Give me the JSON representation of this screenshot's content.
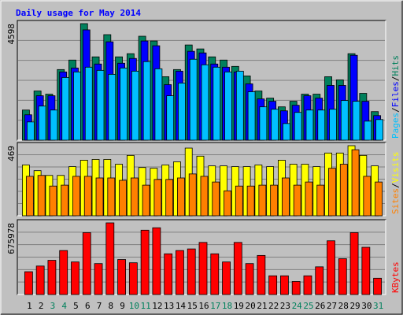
{
  "chart_data": [
    {
      "type": "bar",
      "title": "Daily usage for May 2014",
      "ylim": [
        0,
        4598
      ],
      "yticks": [
        4598
      ],
      "legend_separator": "/",
      "series": [
        {
          "name": "Hits",
          "color": "#00805c",
          "values": [
            1189,
            1941,
            1815,
            2786,
            3161,
            4598,
            3287,
            4163,
            3287,
            3412,
            4100,
            3913,
            2504,
            2786,
            3756,
            3600,
            3287,
            3161,
            2911,
            2535,
            1941,
            1659,
            1315,
            1534,
            1815,
            1815,
            2504,
            2379,
            3412,
            1847,
            1127
          ]
        },
        {
          "name": "Files",
          "color": "#0000ff",
          "values": [
            1002,
            1753,
            1753,
            2692,
            2848,
            4351,
            3005,
            3881,
            3036,
            3224,
            3913,
            3725,
            2191,
            2723,
            3506,
            3443,
            3005,
            2880,
            2692,
            2222,
            1628,
            1534,
            1158,
            1377,
            1753,
            1659,
            2160,
            2160,
            3349,
            1534,
            970
          ]
        },
        {
          "name": "Pages",
          "color": "#00c0ff",
          "values": [
            720,
            1346,
            1189,
            2473,
            2692,
            2880,
            2754,
            2598,
            2848,
            2723,
            3099,
            2817,
            1753,
            2254,
            3193,
            2974,
            2880,
            2692,
            2723,
            1909,
            1315,
            1221,
            657,
            1096,
            1189,
            1189,
            1221,
            1565,
            1534,
            751,
            814
          ]
        }
      ]
    },
    {
      "type": "bar",
      "ylim": [
        0,
        469
      ],
      "yticks": [
        469
      ],
      "legend_separator": "/",
      "series": [
        {
          "name": "Visits",
          "color": "#ffff00",
          "values": [
            340,
            302,
            270,
            270,
            329,
            372,
            377,
            377,
            345,
            404,
            323,
            318,
            340,
            361,
            453,
            399,
            334,
            334,
            329,
            329,
            340,
            329,
            372,
            345,
            345,
            329,
            420,
            420,
            469,
            404,
            334
          ]
        },
        {
          "name": "Sites",
          "color": "#ff8000",
          "values": [
            264,
            270,
            199,
            205,
            264,
            264,
            253,
            253,
            237,
            253,
            205,
            243,
            243,
            253,
            280,
            264,
            226,
            167,
            199,
            199,
            205,
            205,
            253,
            205,
            226,
            205,
            318,
            345,
            442,
            264,
            226
          ]
        }
      ]
    },
    {
      "type": "bar",
      "ylim": [
        0,
        675978
      ],
      "yticks": [
        675978
      ],
      "categories": [
        "1",
        "2",
        "3",
        "4",
        "5",
        "6",
        "7",
        "8",
        "9",
        "10",
        "11",
        "12",
        "13",
        "14",
        "15",
        "16",
        "17",
        "18",
        "19",
        "20",
        "21",
        "22",
        "23",
        "24",
        "25",
        "26",
        "27",
        "28",
        "29",
        "30",
        "31"
      ],
      "category_colors": [
        "#000000",
        "#000000",
        "#00805c",
        "#00805c",
        "#000000",
        "#000000",
        "#000000",
        "#000000",
        "#000000",
        "#00805c",
        "#00805c",
        "#000000",
        "#000000",
        "#000000",
        "#000000",
        "#000000",
        "#00805c",
        "#00805c",
        "#000000",
        "#000000",
        "#000000",
        "#000000",
        "#000000",
        "#00805c",
        "#00805c",
        "#000000",
        "#000000",
        "#000000",
        "#000000",
        "#000000",
        "#00805c"
      ],
      "series": [
        {
          "name": "KBytes",
          "color": "#ff0000",
          "values": [
            215100,
            268870,
            322640,
            414830,
            307280,
            583830,
            291920,
            675978,
            330330,
            299600,
            606880,
            629920,
            384100,
            414830,
            430190,
            491650,
            384100,
            307280,
            491650,
            291920,
            368740,
            176690,
            176690,
            122910,
            176690,
            261190,
            507010,
            338010,
            583830,
            445560,
            153640
          ]
        }
      ]
    }
  ]
}
